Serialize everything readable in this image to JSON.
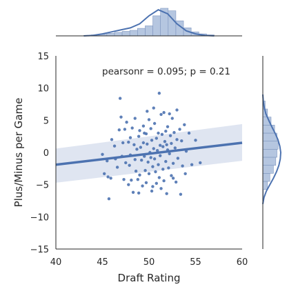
{
  "chart_data": {
    "type": "scatter",
    "subtype": "jointplot-regression",
    "xlabel": "Draft Rating",
    "ylabel": "Plus/Minus per Game",
    "annotation": "pearsonr = 0.095; p = 0.21",
    "xlim": [
      40,
      60
    ],
    "ylim": [
      -15,
      15
    ],
    "x_ticks": [
      "40",
      "45",
      "50",
      "55",
      "60"
    ],
    "y_ticks": [
      "15",
      "10",
      "5",
      "0",
      "−5",
      "−10",
      "−15"
    ],
    "grid": false,
    "legend": "none",
    "colors": {
      "points": "#4C72B0",
      "line": "#4C72B0",
      "band": "#C4D0E5",
      "hist": "#A8BCDA"
    },
    "regression": {
      "x": [
        40,
        60
      ],
      "y": [
        -1.9,
        1.5
      ],
      "ci_upper": [
        0.6,
        4.4
      ],
      "ci_lower": [
        -4.7,
        -1.3
      ]
    },
    "points": [
      [
        45.0,
        -0.3
      ],
      [
        45.2,
        -3.3
      ],
      [
        45.5,
        -1.3
      ],
      [
        45.6,
        -3.8
      ],
      [
        45.9,
        -4.0
      ],
      [
        45.7,
        -7.2
      ],
      [
        46.0,
        2.0
      ],
      [
        46.3,
        1.0
      ],
      [
        46.6,
        -2.3
      ],
      [
        46.8,
        3.5
      ],
      [
        46.9,
        8.4
      ],
      [
        47.0,
        5.5
      ],
      [
        47.2,
        1.5
      ],
      [
        47.3,
        -4.2
      ],
      [
        47.4,
        3.6
      ],
      [
        47.5,
        -1.6
      ],
      [
        47.6,
        4.7
      ],
      [
        47.8,
        -5.0
      ],
      [
        47.8,
        1.6
      ],
      [
        47.9,
        -2.0
      ],
      [
        48.0,
        2.3
      ],
      [
        48.0,
        -0.4
      ],
      [
        48.1,
        -4.3
      ],
      [
        48.2,
        3.8
      ],
      [
        48.3,
        -6.2
      ],
      [
        48.4,
        1.2
      ],
      [
        48.5,
        5.3
      ],
      [
        48.5,
        -1.1
      ],
      [
        48.6,
        -2.9
      ],
      [
        48.7,
        0.5
      ],
      [
        48.8,
        -4.2
      ],
      [
        48.9,
        2.5
      ],
      [
        49.0,
        3.4
      ],
      [
        49.0,
        -3.5
      ],
      [
        49.1,
        0.8
      ],
      [
        49.2,
        -1.2
      ],
      [
        49.3,
        -5.2
      ],
      [
        49.4,
        1.5
      ],
      [
        49.4,
        4.1
      ],
      [
        49.5,
        -0.6
      ],
      [
        49.6,
        -2.8
      ],
      [
        49.7,
        2.9
      ],
      [
        49.7,
        -4.7
      ],
      [
        49.8,
        6.4
      ],
      [
        49.8,
        1.3
      ],
      [
        49.9,
        -1.5
      ],
      [
        50.0,
        5.1
      ],
      [
        50.0,
        -3.3
      ],
      [
        50.1,
        0.0
      ],
      [
        50.2,
        -0.8
      ],
      [
        50.2,
        3.7
      ],
      [
        50.3,
        -6.0
      ],
      [
        50.3,
        1.9
      ],
      [
        50.4,
        -2.2
      ],
      [
        50.5,
        6.9
      ],
      [
        50.5,
        0.6
      ],
      [
        50.6,
        -1.0
      ],
      [
        50.6,
        4.5
      ],
      [
        50.7,
        -3.0
      ],
      [
        50.8,
        2.2
      ],
      [
        50.8,
        -4.8
      ],
      [
        50.9,
        0.3
      ],
      [
        51.0,
        -1.9
      ],
      [
        51.0,
        3.0
      ],
      [
        51.1,
        9.2
      ],
      [
        51.1,
        -3.9
      ],
      [
        51.2,
        1.1
      ],
      [
        51.2,
        -0.5
      ],
      [
        51.3,
        5.9
      ],
      [
        51.3,
        -5.6
      ],
      [
        51.4,
        2.8
      ],
      [
        51.5,
        -2.6
      ],
      [
        51.5,
        0.9
      ],
      [
        51.6,
        6.2
      ],
      [
        51.6,
        -4.4
      ],
      [
        51.7,
        1.7
      ],
      [
        51.8,
        -1.4
      ],
      [
        51.8,
        3.3
      ],
      [
        51.9,
        -6.4
      ],
      [
        52.0,
        0.4
      ],
      [
        52.0,
        4.0
      ],
      [
        52.1,
        -2.4
      ],
      [
        52.2,
        6.0
      ],
      [
        52.2,
        -0.2
      ],
      [
        52.3,
        2.6
      ],
      [
        52.4,
        -3.6
      ],
      [
        52.4,
        1.4
      ],
      [
        52.5,
        5.3
      ],
      [
        52.6,
        -1.7
      ],
      [
        52.7,
        3.1
      ],
      [
        52.8,
        0.7
      ],
      [
        52.9,
        -4.6
      ],
      [
        53.0,
        6.6
      ],
      [
        53.0,
        2.0
      ],
      [
        53.1,
        -0.9
      ],
      [
        53.3,
        3.6
      ],
      [
        53.4,
        -6.5
      ],
      [
        53.5,
        1.8
      ],
      [
        53.6,
        -2.1
      ],
      [
        53.8,
        4.3
      ],
      [
        54.0,
        0.2
      ],
      [
        54.3,
        3.0
      ],
      [
        54.6,
        -1.9
      ],
      [
        55.0,
        1.9
      ],
      [
        55.5,
        -1.6
      ],
      [
        47.1,
        -0.6
      ],
      [
        48.9,
        -6.3
      ],
      [
        50.4,
        -5.3
      ],
      [
        51.9,
        1.2
      ],
      [
        49.5,
        3.0
      ],
      [
        52.6,
        -4.0
      ],
      [
        46.4,
        -1.0
      ],
      [
        53.9,
        -3.3
      ]
    ],
    "top_marginal_hist_density": [
      0.01,
      0.02,
      0.03,
      0.05,
      0.07,
      0.09,
      0.11,
      0.15,
      0.2,
      0.4,
      0.55,
      0.5,
      0.3,
      0.16,
      0.08,
      0.04,
      0.02
    ],
    "top_marginal_kde": [
      [
        43,
        0.0
      ],
      [
        44,
        0.01
      ],
      [
        45,
        0.04
      ],
      [
        46,
        0.08
      ],
      [
        47,
        0.12
      ],
      [
        48,
        0.16
      ],
      [
        49,
        0.24
      ],
      [
        50,
        0.4
      ],
      [
        51,
        0.52
      ],
      [
        52,
        0.44
      ],
      [
        53,
        0.24
      ],
      [
        54,
        0.1
      ],
      [
        55,
        0.04
      ],
      [
        56,
        0.01
      ],
      [
        57,
        0.0
      ]
    ],
    "right_marginal_hist_density": [
      0.03,
      0.2,
      0.3,
      0.45,
      0.55,
      0.6,
      0.65,
      0.6,
      0.5,
      0.35,
      0.2,
      0.1
    ],
    "right_marginal_kde": [
      [
        -8,
        0.0
      ],
      [
        -7,
        0.05
      ],
      [
        -6,
        0.15
      ],
      [
        -5,
        0.3
      ],
      [
        -4,
        0.45
      ],
      [
        -3,
        0.58
      ],
      [
        -2,
        0.68
      ],
      [
        -1,
        0.74
      ],
      [
        0,
        0.76
      ],
      [
        1,
        0.72
      ],
      [
        2,
        0.64
      ],
      [
        3,
        0.52
      ],
      [
        4,
        0.38
      ],
      [
        5,
        0.25
      ],
      [
        6,
        0.13
      ],
      [
        7,
        0.06
      ],
      [
        8,
        0.02
      ],
      [
        9,
        0.0
      ]
    ]
  }
}
